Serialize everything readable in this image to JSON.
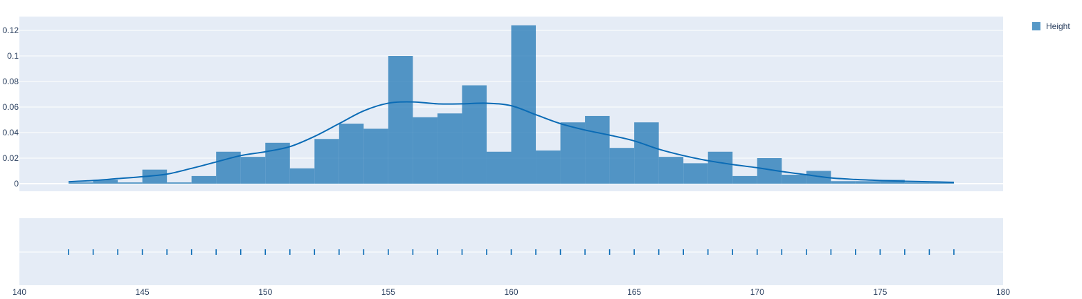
{
  "chart_data": {
    "type": "bar",
    "subtype": "distplot",
    "title": "",
    "xlabel": "",
    "ylabel": "",
    "xlim": [
      140,
      180
    ],
    "ylim": [
      -0.006,
      0.125
    ],
    "x_ticks": [
      140,
      145,
      150,
      155,
      160,
      165,
      170,
      175,
      180
    ],
    "x_tick_labels": [
      "140",
      "145",
      "150",
      "155",
      "160",
      "165",
      "170",
      "175",
      "180"
    ],
    "y_ticks": [
      0,
      0.02,
      0.04,
      0.06,
      0.08,
      0.1,
      0.12
    ],
    "y_tick_labels": [
      "0",
      "0.02",
      "0.04",
      "0.06",
      "0.08",
      "0.1",
      "0.12"
    ],
    "grid": true,
    "legend_position": "top-right",
    "colors": {
      "series": "#1f77b4",
      "kde": "#0a6bb5",
      "plot_bg": "#e5ecf6"
    },
    "series": [
      {
        "name": "Height",
        "kind": "histogram",
        "bin_width": 1,
        "bin_starts": [
          142,
          143,
          144,
          145,
          146,
          147,
          148,
          149,
          150,
          151,
          152,
          153,
          154,
          155,
          156,
          157,
          158,
          159,
          160,
          161,
          162,
          163,
          164,
          165,
          166,
          167,
          168,
          169,
          170,
          171,
          172,
          173,
          174,
          175,
          176,
          177
        ],
        "values": [
          0.001,
          0.003,
          0.001,
          0.011,
          0.001,
          0.006,
          0.025,
          0.021,
          0.032,
          0.012,
          0.035,
          0.047,
          0.043,
          0.1,
          0.052,
          0.055,
          0.077,
          0.025,
          0.124,
          0.026,
          0.048,
          0.053,
          0.028,
          0.048,
          0.021,
          0.016,
          0.025,
          0.006,
          0.02,
          0.007,
          0.01,
          0.002,
          0.002,
          0.003,
          0.001,
          0.001
        ]
      },
      {
        "name": "Height",
        "kind": "kde",
        "x": [
          142,
          143,
          144,
          145,
          146,
          147,
          148,
          149,
          150,
          151,
          152,
          153,
          154,
          155,
          156,
          157,
          158,
          159,
          160,
          161,
          162,
          163,
          164,
          165,
          166,
          167,
          168,
          169,
          170,
          171,
          172,
          173,
          174,
          175,
          176,
          177,
          178
        ],
        "values": [
          0.0015,
          0.0025,
          0.004,
          0.0055,
          0.0075,
          0.012,
          0.017,
          0.022,
          0.025,
          0.029,
          0.037,
          0.047,
          0.057,
          0.063,
          0.064,
          0.0625,
          0.0625,
          0.063,
          0.061,
          0.054,
          0.047,
          0.042,
          0.038,
          0.0335,
          0.027,
          0.022,
          0.018,
          0.015,
          0.0125,
          0.0095,
          0.007,
          0.0045,
          0.0033,
          0.0025,
          0.0019,
          0.0015,
          0.001
        ]
      },
      {
        "name": "Height",
        "kind": "rug",
        "x": [
          142,
          143,
          144,
          145,
          146,
          147,
          148,
          149,
          150,
          151,
          152,
          153,
          154,
          155,
          156,
          157,
          158,
          159,
          160,
          161,
          162,
          163,
          164,
          165,
          166,
          167,
          168,
          169,
          170,
          171,
          172,
          173,
          174,
          175,
          176,
          177,
          178
        ]
      }
    ]
  }
}
